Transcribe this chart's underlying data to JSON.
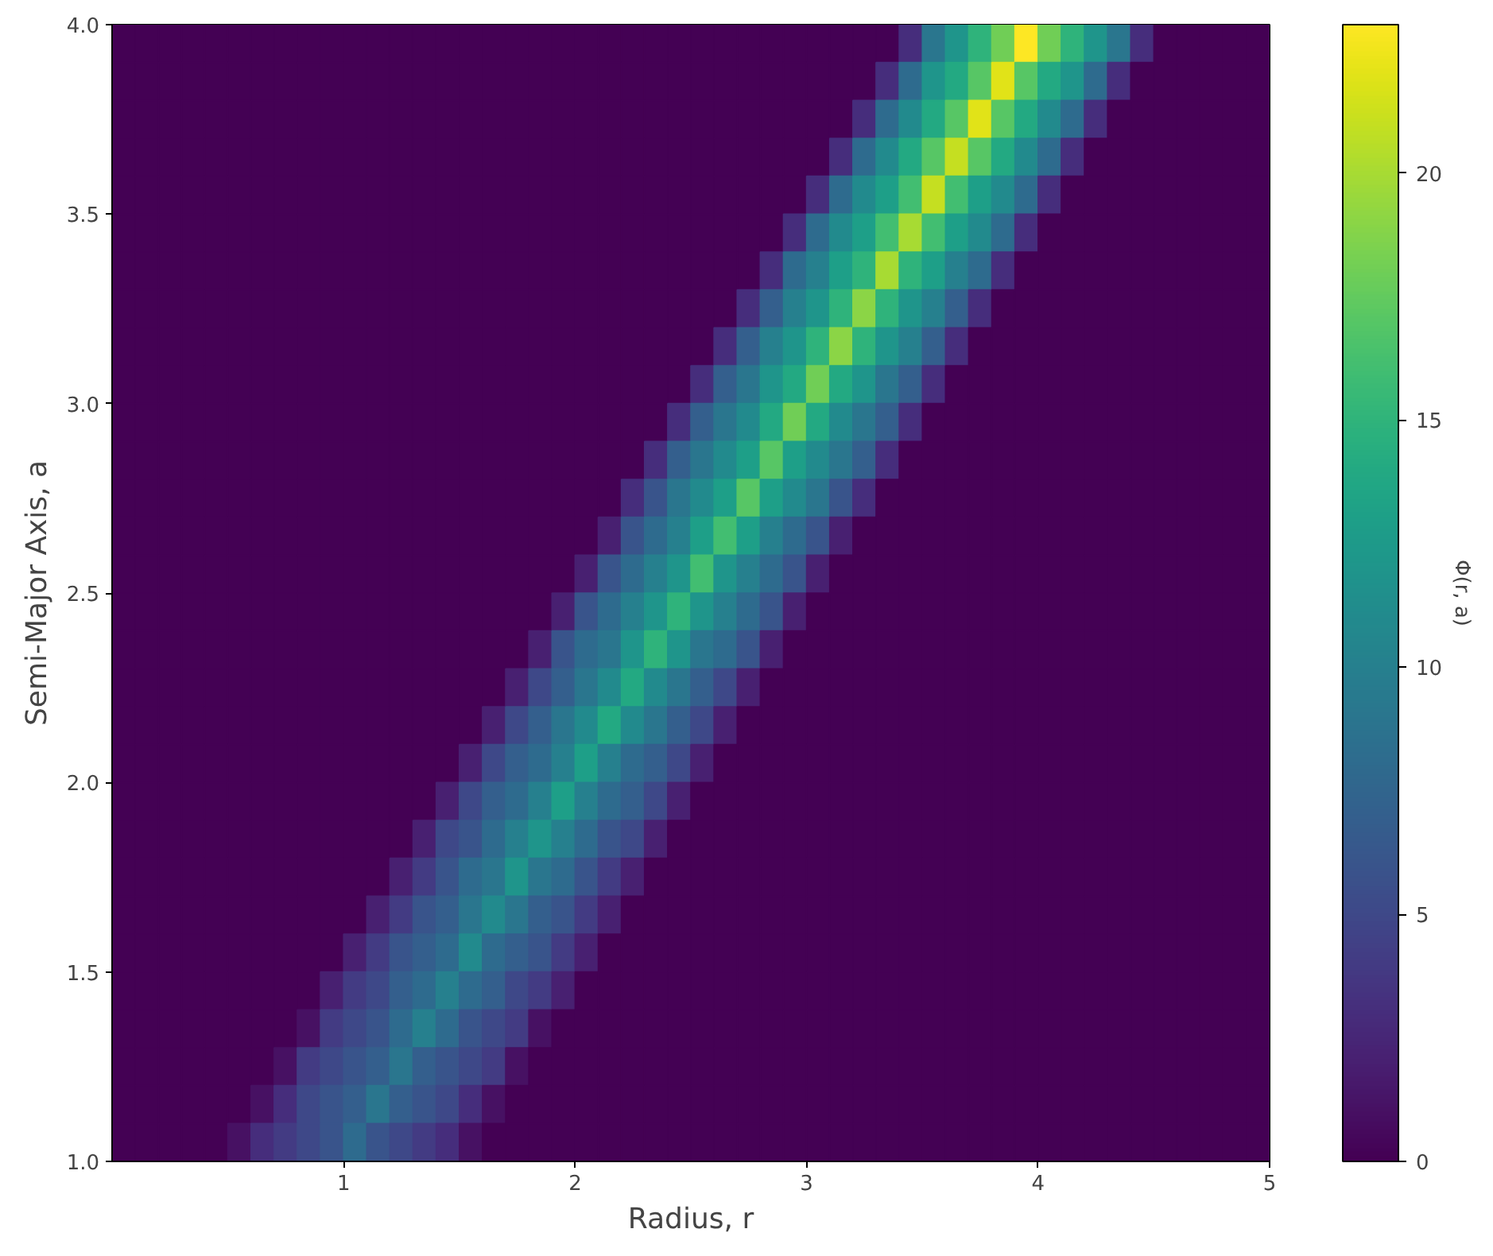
{
  "chart_data": {
    "type": "heatmap",
    "xlabel": "Radius, r",
    "ylabel": "Semi-Major Axis, a",
    "clabel": "Φ(r, a)",
    "xlim": [
      0,
      5
    ],
    "ylim": [
      1,
      4
    ],
    "xticks": [
      1,
      2,
      3,
      4,
      5
    ],
    "yticks": [
      {
        "value": 1,
        "label": "1.0"
      },
      1.5,
      {
        "value": 2,
        "label": "2.0"
      },
      2.5,
      {
        "value": 3,
        "label": "3.0"
      },
      3.5,
      {
        "value": 4,
        "label": "4.0"
      }
    ],
    "clim": [
      0,
      23
    ],
    "cticks": [
      0,
      5,
      10,
      15,
      20
    ],
    "x": [
      0.05,
      0.15,
      0.25,
      0.35,
      0.45,
      0.55,
      0.65,
      0.75,
      0.85,
      0.95,
      1.05,
      1.15,
      1.25,
      1.35,
      1.45,
      1.55,
      1.65,
      1.75,
      1.85,
      1.95,
      2.05,
      2.15,
      2.25,
      2.35,
      2.45,
      2.55,
      2.65,
      2.75,
      2.85,
      2.95,
      3.05,
      3.15,
      3.25,
      3.35,
      3.45,
      3.55,
      3.65,
      3.75,
      3.85,
      3.95,
      4.05,
      4.15,
      4.25,
      4.35,
      4.45,
      4.55,
      4.65,
      4.75,
      4.85,
      4.95
    ],
    "cells": [
      [
        0,
        0,
        0,
        0,
        0,
        0,
        0,
        0,
        0,
        0,
        0,
        0,
        0,
        0,
        0,
        0,
        0,
        0,
        0,
        0,
        0,
        0,
        0,
        0,
        0,
        0,
        0,
        0,
        0,
        0,
        0,
        0,
        0,
        0,
        3,
        9,
        12,
        15,
        18,
        23,
        18,
        15,
        12,
        9,
        3,
        0,
        0,
        0,
        0,
        0
      ],
      [
        0,
        0,
        0,
        0,
        0,
        0,
        0,
        0,
        0,
        0,
        0,
        0,
        0,
        0,
        0,
        0,
        0,
        0,
        0,
        0,
        0,
        0,
        0,
        0,
        0,
        0,
        0,
        0,
        0,
        0,
        0,
        0,
        0,
        3,
        8,
        12,
        14,
        17,
        22,
        17,
        14,
        12,
        8,
        3,
        0,
        0,
        0,
        0,
        0,
        0
      ],
      [
        0,
        0,
        0,
        0,
        0,
        0,
        0,
        0,
        0,
        0,
        0,
        0,
        0,
        0,
        0,
        0,
        0,
        0,
        0,
        0,
        0,
        0,
        0,
        0,
        0,
        0,
        0,
        0,
        0,
        0,
        0,
        0,
        3,
        8,
        11,
        14,
        17,
        22,
        17,
        14,
        11,
        8,
        3,
        0,
        0,
        0,
        0,
        0,
        0,
        0
      ],
      [
        0,
        0,
        0,
        0,
        0,
        0,
        0,
        0,
        0,
        0,
        0,
        0,
        0,
        0,
        0,
        0,
        0,
        0,
        0,
        0,
        0,
        0,
        0,
        0,
        0,
        0,
        0,
        0,
        0,
        0,
        0,
        3,
        8,
        11,
        14,
        17,
        21,
        17,
        14,
        11,
        8,
        3,
        0,
        0,
        0,
        0,
        0,
        0,
        0,
        0
      ],
      [
        0,
        0,
        0,
        0,
        0,
        0,
        0,
        0,
        0,
        0,
        0,
        0,
        0,
        0,
        0,
        0,
        0,
        0,
        0,
        0,
        0,
        0,
        0,
        0,
        0,
        0,
        0,
        0,
        0,
        0,
        3,
        8,
        11,
        13,
        16,
        21,
        16,
        13,
        11,
        8,
        3,
        0,
        0,
        0,
        0,
        0,
        0,
        0,
        0,
        0
      ],
      [
        0,
        0,
        0,
        0,
        0,
        0,
        0,
        0,
        0,
        0,
        0,
        0,
        0,
        0,
        0,
        0,
        0,
        0,
        0,
        0,
        0,
        0,
        0,
        0,
        0,
        0,
        0,
        0,
        0,
        3,
        8,
        11,
        13,
        16,
        20,
        16,
        13,
        11,
        8,
        3,
        0,
        0,
        0,
        0,
        0,
        0,
        0,
        0,
        0,
        0
      ],
      [
        0,
        0,
        0,
        0,
        0,
        0,
        0,
        0,
        0,
        0,
        0,
        0,
        0,
        0,
        0,
        0,
        0,
        0,
        0,
        0,
        0,
        0,
        0,
        0,
        0,
        0,
        0,
        0,
        3,
        8,
        10,
        13,
        15,
        20,
        15,
        13,
        10,
        8,
        3,
        0,
        0,
        0,
        0,
        0,
        0,
        0,
        0,
        0,
        0,
        0
      ],
      [
        0,
        0,
        0,
        0,
        0,
        0,
        0,
        0,
        0,
        0,
        0,
        0,
        0,
        0,
        0,
        0,
        0,
        0,
        0,
        0,
        0,
        0,
        0,
        0,
        0,
        0,
        0,
        3,
        7,
        10,
        12,
        15,
        19,
        15,
        12,
        10,
        7,
        3,
        0,
        0,
        0,
        0,
        0,
        0,
        0,
        0,
        0,
        0,
        0,
        0
      ],
      [
        0,
        0,
        0,
        0,
        0,
        0,
        0,
        0,
        0,
        0,
        0,
        0,
        0,
        0,
        0,
        0,
        0,
        0,
        0,
        0,
        0,
        0,
        0,
        0,
        0,
        0,
        3,
        7,
        10,
        12,
        15,
        19,
        15,
        12,
        10,
        7,
        3,
        0,
        0,
        0,
        0,
        0,
        0,
        0,
        0,
        0,
        0,
        0,
        0,
        0
      ],
      [
        0,
        0,
        0,
        0,
        0,
        0,
        0,
        0,
        0,
        0,
        0,
        0,
        0,
        0,
        0,
        0,
        0,
        0,
        0,
        0,
        0,
        0,
        0,
        0,
        0,
        3,
        7,
        9,
        12,
        14,
        18,
        14,
        12,
        9,
        7,
        3,
        0,
        0,
        0,
        0,
        0,
        0,
        0,
        0,
        0,
        0,
        0,
        0,
        0,
        0
      ],
      [
        0,
        0,
        0,
        0,
        0,
        0,
        0,
        0,
        0,
        0,
        0,
        0,
        0,
        0,
        0,
        0,
        0,
        0,
        0,
        0,
        0,
        0,
        0,
        0,
        3,
        7,
        9,
        11,
        14,
        18,
        14,
        11,
        9,
        7,
        3,
        0,
        0,
        0,
        0,
        0,
        0,
        0,
        0,
        0,
        0,
        0,
        0,
        0,
        0,
        0
      ],
      [
        0,
        0,
        0,
        0,
        0,
        0,
        0,
        0,
        0,
        0,
        0,
        0,
        0,
        0,
        0,
        0,
        0,
        0,
        0,
        0,
        0,
        0,
        0,
        3,
        7,
        9,
        11,
        13,
        17,
        13,
        11,
        9,
        7,
        3,
        0,
        0,
        0,
        0,
        0,
        0,
        0,
        0,
        0,
        0,
        0,
        0,
        0,
        0,
        0,
        0
      ],
      [
        0,
        0,
        0,
        0,
        0,
        0,
        0,
        0,
        0,
        0,
        0,
        0,
        0,
        0,
        0,
        0,
        0,
        0,
        0,
        0,
        0,
        0,
        3,
        6,
        9,
        11,
        13,
        17,
        13,
        11,
        9,
        6,
        3,
        0,
        0,
        0,
        0,
        0,
        0,
        0,
        0,
        0,
        0,
        0,
        0,
        0,
        0,
        0,
        0,
        0
      ],
      [
        0,
        0,
        0,
        0,
        0,
        0,
        0,
        0,
        0,
        0,
        0,
        0,
        0,
        0,
        0,
        0,
        0,
        0,
        0,
        0,
        0,
        2,
        6,
        8,
        10,
        13,
        16,
        13,
        10,
        8,
        6,
        2,
        0,
        0,
        0,
        0,
        0,
        0,
        0,
        0,
        0,
        0,
        0,
        0,
        0,
        0,
        0,
        0,
        0,
        0
      ],
      [
        0,
        0,
        0,
        0,
        0,
        0,
        0,
        0,
        0,
        0,
        0,
        0,
        0,
        0,
        0,
        0,
        0,
        0,
        0,
        0,
        2,
        6,
        8,
        10,
        12,
        16,
        12,
        10,
        8,
        6,
        2,
        0,
        0,
        0,
        0,
        0,
        0,
        0,
        0,
        0,
        0,
        0,
        0,
        0,
        0,
        0,
        0,
        0,
        0,
        0
      ],
      [
        0,
        0,
        0,
        0,
        0,
        0,
        0,
        0,
        0,
        0,
        0,
        0,
        0,
        0,
        0,
        0,
        0,
        0,
        0,
        2,
        6,
        8,
        10,
        12,
        15,
        12,
        10,
        8,
        6,
        2,
        0,
        0,
        0,
        0,
        0,
        0,
        0,
        0,
        0,
        0,
        0,
        0,
        0,
        0,
        0,
        0,
        0,
        0,
        0,
        0
      ],
      [
        0,
        0,
        0,
        0,
        0,
        0,
        0,
        0,
        0,
        0,
        0,
        0,
        0,
        0,
        0,
        0,
        0,
        0,
        2,
        6,
        8,
        9,
        12,
        15,
        12,
        9,
        8,
        6,
        2,
        0,
        0,
        0,
        0,
        0,
        0,
        0,
        0,
        0,
        0,
        0,
        0,
        0,
        0,
        0,
        0,
        0,
        0,
        0,
        0,
        0
      ],
      [
        0,
        0,
        0,
        0,
        0,
        0,
        0,
        0,
        0,
        0,
        0,
        0,
        0,
        0,
        0,
        0,
        0,
        2,
        5,
        7,
        9,
        11,
        14,
        11,
        9,
        7,
        5,
        2,
        0,
        0,
        0,
        0,
        0,
        0,
        0,
        0,
        0,
        0,
        0,
        0,
        0,
        0,
        0,
        0,
        0,
        0,
        0,
        0,
        0,
        0
      ],
      [
        0,
        0,
        0,
        0,
        0,
        0,
        0,
        0,
        0,
        0,
        0,
        0,
        0,
        0,
        0,
        0,
        2,
        5,
        7,
        9,
        11,
        14,
        11,
        9,
        7,
        5,
        2,
        0,
        0,
        0,
        0,
        0,
        0,
        0,
        0,
        0,
        0,
        0,
        0,
        0,
        0,
        0,
        0,
        0,
        0,
        0,
        0,
        0,
        0,
        0
      ],
      [
        0,
        0,
        0,
        0,
        0,
        0,
        0,
        0,
        0,
        0,
        0,
        0,
        0,
        0,
        0,
        2,
        5,
        7,
        8,
        10,
        13,
        10,
        8,
        7,
        5,
        2,
        0,
        0,
        0,
        0,
        0,
        0,
        0,
        0,
        0,
        0,
        0,
        0,
        0,
        0,
        0,
        0,
        0,
        0,
        0,
        0,
        0,
        0,
        0,
        0
      ],
      [
        0,
        0,
        0,
        0,
        0,
        0,
        0,
        0,
        0,
        0,
        0,
        0,
        0,
        0,
        2,
        5,
        7,
        8,
        10,
        13,
        10,
        8,
        7,
        5,
        2,
        0,
        0,
        0,
        0,
        0,
        0,
        0,
        0,
        0,
        0,
        0,
        0,
        0,
        0,
        0,
        0,
        0,
        0,
        0,
        0,
        0,
        0,
        0,
        0,
        0
      ],
      [
        0,
        0,
        0,
        0,
        0,
        0,
        0,
        0,
        0,
        0,
        0,
        0,
        0,
        2,
        5,
        6,
        8,
        10,
        12,
        10,
        8,
        6,
        5,
        2,
        0,
        0,
        0,
        0,
        0,
        0,
        0,
        0,
        0,
        0,
        0,
        0,
        0,
        0,
        0,
        0,
        0,
        0,
        0,
        0,
        0,
        0,
        0,
        0,
        0,
        0
      ],
      [
        0,
        0,
        0,
        0,
        0,
        0,
        0,
        0,
        0,
        0,
        0,
        0,
        2,
        4,
        6,
        8,
        9,
        12,
        9,
        8,
        6,
        4,
        2,
        0,
        0,
        0,
        0,
        0,
        0,
        0,
        0,
        0,
        0,
        0,
        0,
        0,
        0,
        0,
        0,
        0,
        0,
        0,
        0,
        0,
        0,
        0,
        0,
        0,
        0,
        0
      ],
      [
        0,
        0,
        0,
        0,
        0,
        0,
        0,
        0,
        0,
        0,
        0,
        2,
        4,
        6,
        7,
        9,
        11,
        9,
        7,
        6,
        4,
        2,
        0,
        0,
        0,
        0,
        0,
        0,
        0,
        0,
        0,
        0,
        0,
        0,
        0,
        0,
        0,
        0,
        0,
        0,
        0,
        0,
        0,
        0,
        0,
        0,
        0,
        0,
        0,
        0
      ],
      [
        0,
        0,
        0,
        0,
        0,
        0,
        0,
        0,
        0,
        0,
        2,
        4,
        6,
        7,
        8,
        11,
        8,
        7,
        6,
        4,
        2,
        0,
        0,
        0,
        0,
        0,
        0,
        0,
        0,
        0,
        0,
        0,
        0,
        0,
        0,
        0,
        0,
        0,
        0,
        0,
        0,
        0,
        0,
        0,
        0,
        0,
        0,
        0,
        0,
        0
      ],
      [
        0,
        0,
        0,
        0,
        0,
        0,
        0,
        0,
        0,
        2,
        4,
        5,
        7,
        8,
        10,
        8,
        7,
        5,
        4,
        2,
        0,
        0,
        0,
        0,
        0,
        0,
        0,
        0,
        0,
        0,
        0,
        0,
        0,
        0,
        0,
        0,
        0,
        0,
        0,
        0,
        0,
        0,
        0,
        0,
        0,
        0,
        0,
        0,
        0,
        0
      ],
      [
        0,
        0,
        0,
        0,
        0,
        0,
        0,
        0,
        1,
        4,
        5,
        6,
        8,
        10,
        8,
        6,
        5,
        4,
        1,
        0,
        0,
        0,
        0,
        0,
        0,
        0,
        0,
        0,
        0,
        0,
        0,
        0,
        0,
        0,
        0,
        0,
        0,
        0,
        0,
        0,
        0,
        0,
        0,
        0,
        0,
        0,
        0,
        0,
        0,
        0
      ],
      [
        0,
        0,
        0,
        0,
        0,
        0,
        0,
        1,
        4,
        5,
        6,
        7,
        9,
        7,
        6,
        5,
        4,
        1,
        0,
        0,
        0,
        0,
        0,
        0,
        0,
        0,
        0,
        0,
        0,
        0,
        0,
        0,
        0,
        0,
        0,
        0,
        0,
        0,
        0,
        0,
        0,
        0,
        0,
        0,
        0,
        0,
        0,
        0,
        0,
        0
      ],
      [
        0,
        0,
        0,
        0,
        0,
        0,
        1,
        3,
        5,
        6,
        7,
        9,
        7,
        6,
        5,
        3,
        1,
        0,
        0,
        0,
        0,
        0,
        0,
        0,
        0,
        0,
        0,
        0,
        0,
        0,
        0,
        0,
        0,
        0,
        0,
        0,
        0,
        0,
        0,
        0,
        0,
        0,
        0,
        0,
        0,
        0,
        0,
        0,
        0,
        0
      ],
      [
        0,
        0,
        0,
        0,
        0,
        1,
        3,
        4,
        5,
        6,
        8,
        6,
        5,
        4,
        3,
        1,
        0,
        0,
        0,
        0,
        0,
        0,
        0,
        0,
        0,
        0,
        0,
        0,
        0,
        0,
        0,
        0,
        0,
        0,
        0,
        0,
        0,
        0,
        0,
        0,
        0,
        0,
        0,
        0,
        0,
        0,
        0,
        0,
        0,
        0
      ]
    ]
  }
}
